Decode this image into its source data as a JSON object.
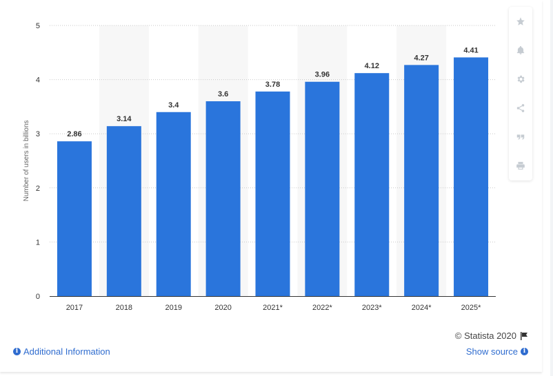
{
  "chart_data": {
    "type": "bar",
    "categories": [
      "2017",
      "2018",
      "2019",
      "2020",
      "2021*",
      "2022*",
      "2023*",
      "2024*",
      "2025*"
    ],
    "values": [
      2.86,
      3.14,
      3.4,
      3.6,
      3.78,
      3.96,
      4.12,
      4.27,
      4.41
    ],
    "value_labels": [
      "2.86",
      "3.14",
      "3.4",
      "3.6",
      "3.78",
      "3.96",
      "4.12",
      "4.27",
      "4.41"
    ],
    "ylabel": "Number of users in billions",
    "ylim": [
      0,
      5
    ],
    "yticks": [
      0,
      1,
      2,
      3,
      4,
      5
    ],
    "grid": true,
    "bar_color": "#2a75dc",
    "band_color": "#f7f7f7"
  },
  "toolbar": {
    "items": [
      "star-icon",
      "bell-icon",
      "gear-icon",
      "share-icon",
      "quote-icon",
      "print-icon"
    ]
  },
  "footer": {
    "additional_info_label": "Additional Information",
    "show_source_label": "Show source",
    "credit": "© Statista 2020",
    "link_color": "#2f6ccf"
  }
}
